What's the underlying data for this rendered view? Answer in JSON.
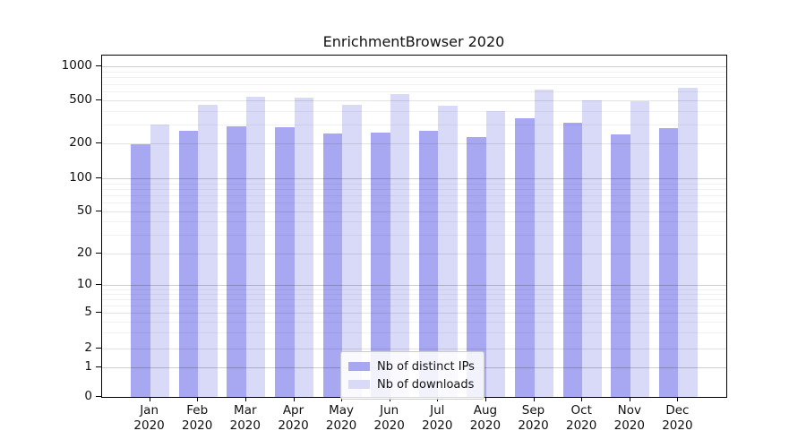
{
  "chart_data": {
    "type": "bar",
    "title": "EnrichmentBrowser 2020",
    "categories": [
      "Jan 2020",
      "Feb 2020",
      "Mar 2020",
      "Apr 2020",
      "May 2020",
      "Jun 2020",
      "Jul 2020",
      "Aug 2020",
      "Sep 2020",
      "Oct 2020",
      "Nov 2020",
      "Dec 2020"
    ],
    "series": [
      {
        "name": "Nb of distinct IPs",
        "color": "#a8a8f2",
        "values": [
          196,
          260,
          287,
          283,
          246,
          250,
          261,
          228,
          340,
          311,
          241,
          276
        ]
      },
      {
        "name": "Nb of downloads",
        "color": "#d9d9f8",
        "values": [
          300,
          455,
          540,
          532,
          458,
          570,
          448,
          400,
          618,
          499,
          488,
          647
        ]
      }
    ],
    "xlabel": "",
    "ylabel": "",
    "yscale": "symlog",
    "yticks": [
      0,
      1,
      2,
      5,
      10,
      20,
      50,
      100,
      200,
      500,
      1000
    ],
    "ylim": [
      0,
      1250
    ],
    "xlim_categories": "half-category padding on each side plus one empty slot left and right",
    "grid": "horizontal only: major gray lines at labeled ticks, faint minor log lines",
    "legend_position": "inside, lower center-left",
    "bar_layout": "grouped pairs, ~0.4 category width per bar, no gap inside pair"
  },
  "legend": {
    "items": [
      {
        "label": "Nb of distinct IPs",
        "color": "#a8a8f2"
      },
      {
        "label": "Nb of downloads",
        "color": "#d9d9f8"
      }
    ]
  }
}
